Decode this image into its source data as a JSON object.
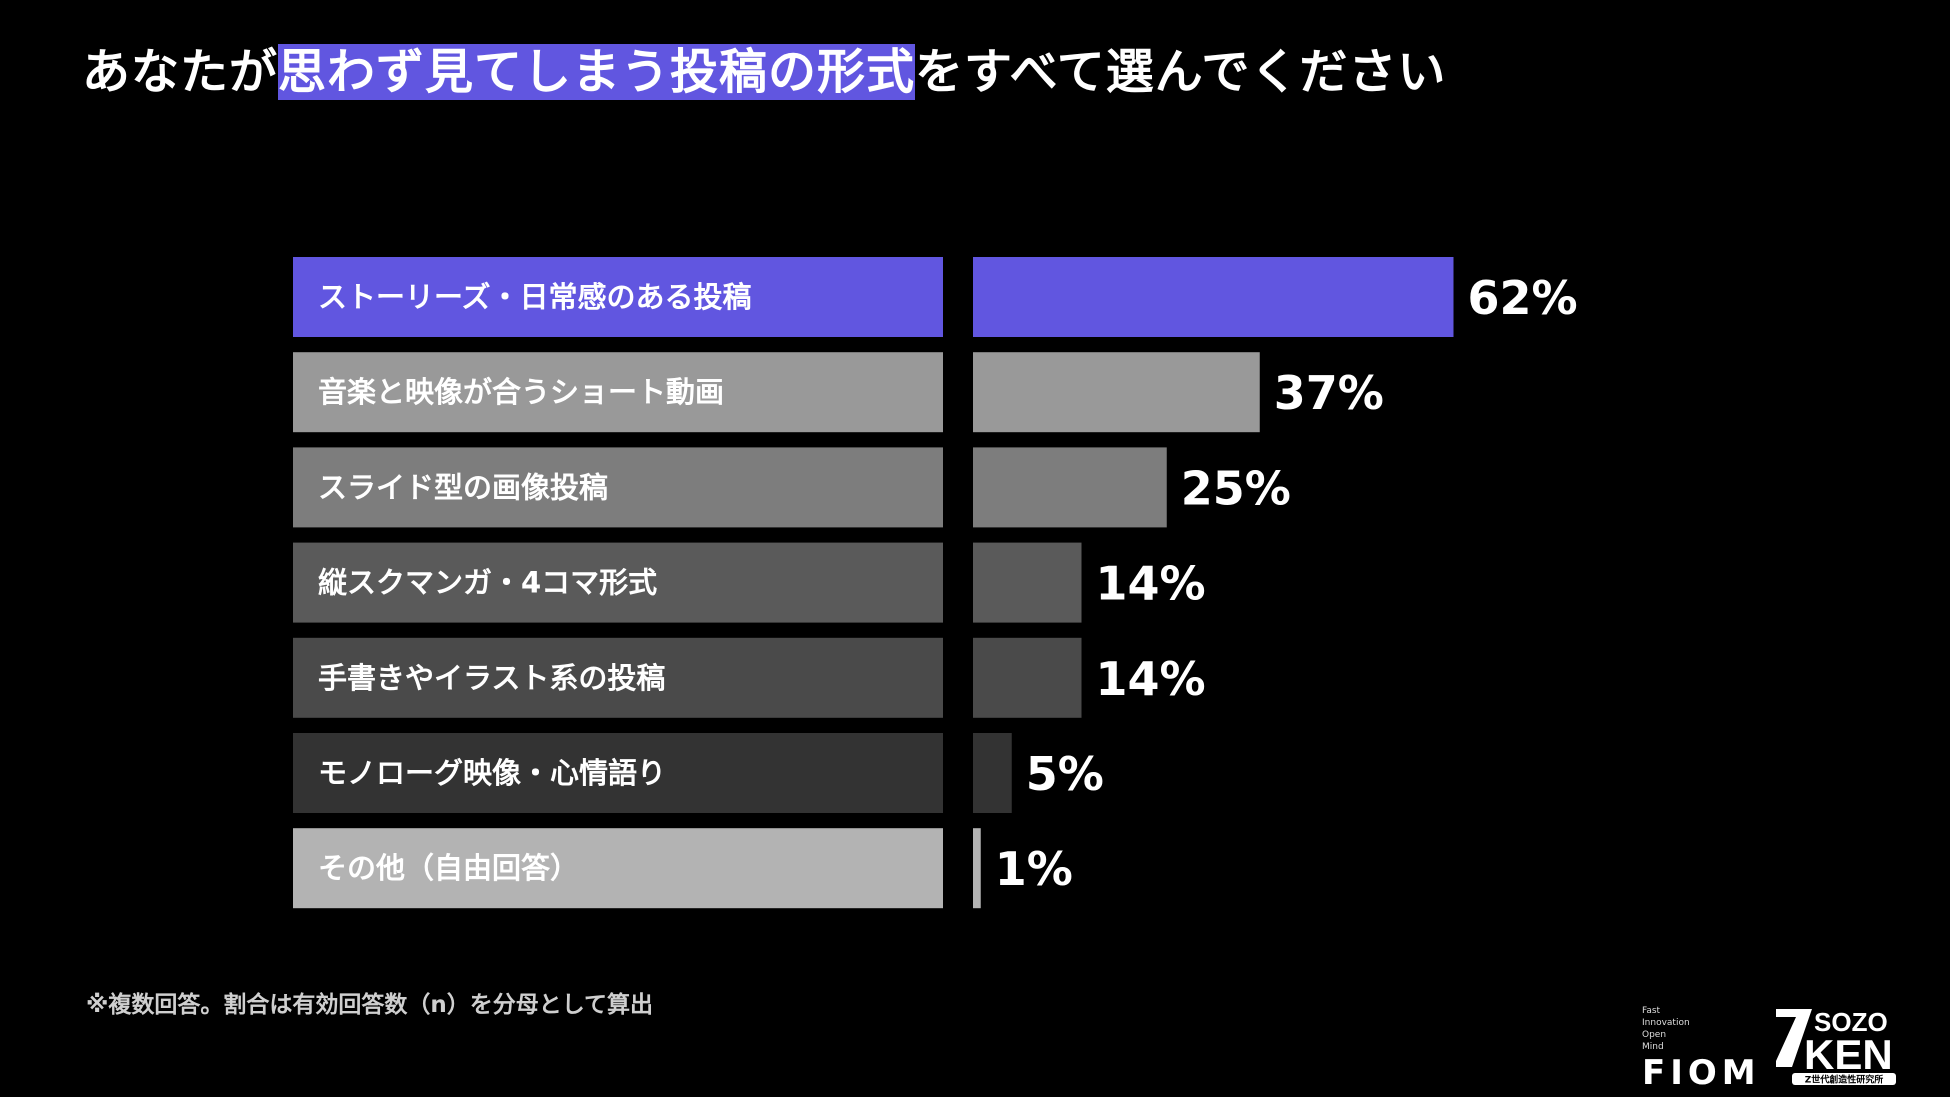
{
  "title": {
    "pre": "あなたが",
    "highlight": "思わず見てしまう投稿の形式",
    "post": "をすべて選んでください"
  },
  "chart_data": {
    "type": "bar",
    "orientation": "horizontal",
    "categories": [
      "ストーリーズ・日常感のある投稿",
      "音楽と映像が合うショート動画",
      "スライド型の画像投稿",
      "縦スクマンガ・4コマ形式",
      "手書きやイラスト系の投稿",
      "モノローグ映像・心情語り",
      "その他（自由回答）"
    ],
    "values": [
      62,
      37,
      25,
      14,
      14,
      5,
      1
    ],
    "value_labels": [
      "62%",
      "37%",
      "25%",
      "14%",
      "14%",
      "5%",
      "1%"
    ],
    "unit": "%",
    "xlim": [
      0,
      100
    ],
    "grid": false,
    "legend": "none",
    "label_colors": [
      "#6156e0",
      "#999999",
      "#7d7d7d",
      "#5a5a5a",
      "#4a4a4a",
      "#333333",
      "#b3b3b3"
    ],
    "bar_colors": [
      "#6156e0",
      "#999999",
      "#7d7d7d",
      "#5a5a5a",
      "#4a4a4a",
      "#333333",
      "#b3b3b3"
    ]
  },
  "footnote": "※複数回答。割合は有効回答数（n）を分母として算出",
  "logos": {
    "fiom_tagline": [
      "Fast",
      "Innovation",
      "Open",
      "Mind"
    ],
    "fiom": "FIOM",
    "zken_top": "SOZO",
    "zken_bottom": "KEN",
    "zken_sub": "Z世代創造性研究所"
  }
}
